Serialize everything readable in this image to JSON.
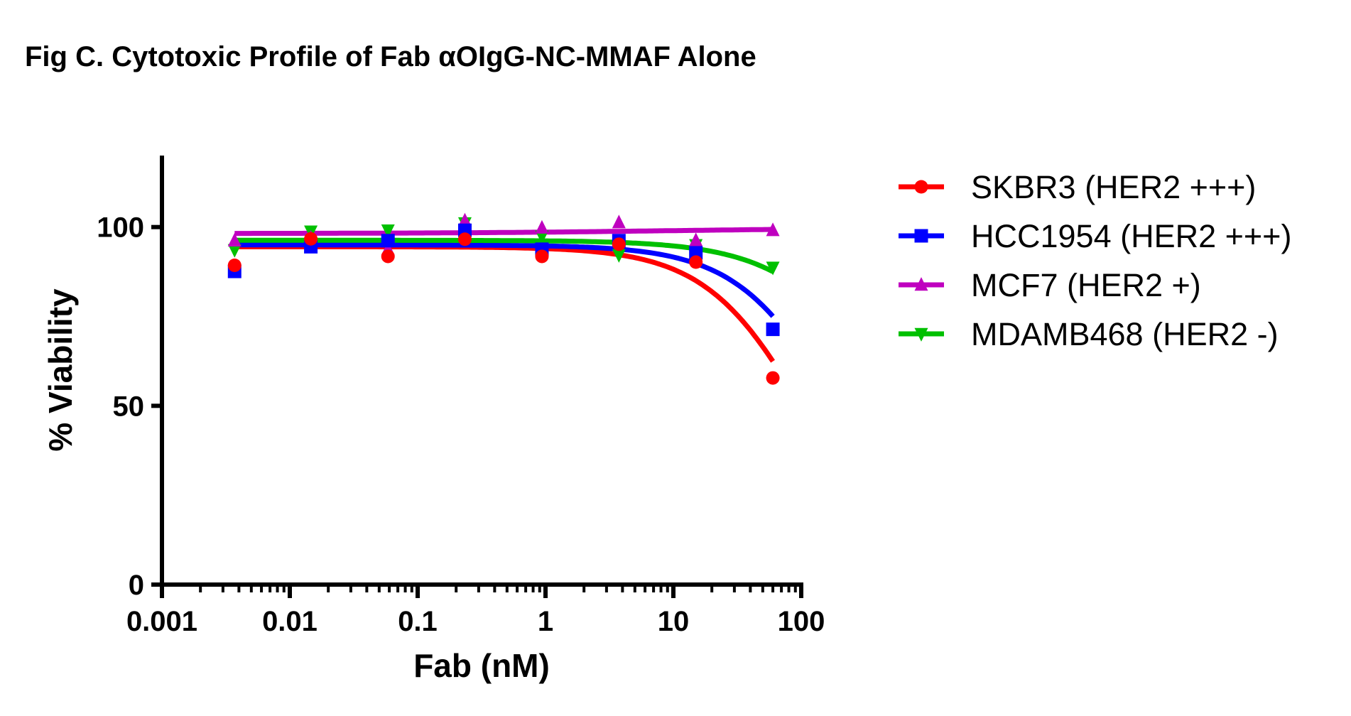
{
  "chart_data": {
    "type": "scatter",
    "title": "Fig C. Cytotoxic Profile of Fab αOIgG-NC-MMAF Alone",
    "xlabel": "Fab (nM)",
    "ylabel": "% Viability",
    "xscale": "log",
    "xlim": [
      0.001,
      100
    ],
    "ylim": [
      0,
      120
    ],
    "xticks": [
      0.001,
      0.01,
      0.1,
      1,
      10,
      100
    ],
    "xtick_labels": [
      "0.001",
      "0.01",
      "0.1",
      "1",
      "10",
      "100"
    ],
    "yticks": [
      0,
      50,
      100
    ],
    "ytick_labels": [
      "0",
      "50",
      "100"
    ],
    "grid": false,
    "legend_position": "right",
    "x": [
      0.0037,
      0.0146,
      0.0586,
      0.234,
      0.9375,
      3.75,
      15,
      60
    ],
    "series": [
      {
        "name": "SKBR3 (HER2 +++)",
        "color": "#ff0000",
        "marker": "circle",
        "values": [
          89.3,
          96.7,
          91.8,
          96.6,
          91.8,
          95.2,
          90.2,
          57.8
        ],
        "fit": {
          "top": 94.5,
          "bottom": 0,
          "ec50": 110,
          "hill": 1.1
        }
      },
      {
        "name": "HCC1954 (HER2 +++)",
        "color": "#0000ff",
        "marker": "square",
        "values": [
          87.6,
          94.5,
          96.2,
          99.1,
          93.8,
          96.2,
          92.8,
          71.4
        ],
        "fit": {
          "top": 95.0,
          "bottom": 0,
          "ec50": 200,
          "hill": 1.1
        }
      },
      {
        "name": "MCF7 (HER2 +)",
        "color": "#bf00bf",
        "marker": "triangle-up",
        "values": [
          96.2,
          97.0,
          93.8,
          101.8,
          99.8,
          101.3,
          96.3,
          99.1
        ],
        "fit": {
          "top": 98.2,
          "bottom": 99.8,
          "ec50": 10,
          "hill": 0.5
        }
      },
      {
        "name": "MDAMB468 (HER2 -)",
        "color": "#00c000",
        "marker": "triangle-down",
        "values": [
          93.6,
          98.8,
          99.1,
          101.1,
          97.4,
          92.2,
          95.0,
          88.7
        ],
        "fit": {
          "top": 96.3,
          "bottom": 0,
          "ec50": 600,
          "hill": 1.0
        }
      }
    ]
  }
}
